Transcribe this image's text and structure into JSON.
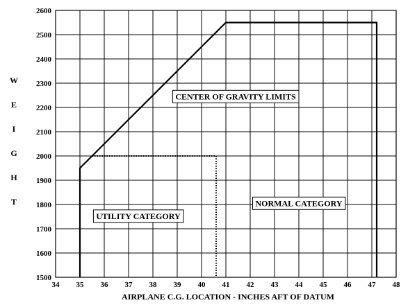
{
  "chart_data": {
    "type": "line",
    "title": "",
    "xlabel": "AIRPLANE C.G. LOCATION - INCHES AFT OF DATUM",
    "ylabel": "WEIGHT",
    "ylabel_letters": [
      "W",
      "E",
      "I",
      "G",
      "H",
      "T"
    ],
    "xlim": [
      34,
      48
    ],
    "ylim": [
      1500,
      2600
    ],
    "x_ticks": [
      34,
      35,
      36,
      37,
      38,
      39,
      40,
      41,
      42,
      43,
      44,
      45,
      46,
      47,
      48
    ],
    "y_ticks": [
      1500,
      1600,
      1700,
      1800,
      1900,
      2000,
      2100,
      2200,
      2300,
      2400,
      2500,
      2600
    ],
    "grid": true,
    "legend": "none",
    "series": [
      {
        "style": "solid",
        "x": [
          35.0,
          35.0,
          41.0,
          47.2,
          47.2
        ],
        "y": [
          1500,
          1950,
          2550,
          2550,
          1500
        ]
      },
      {
        "style": "dotted",
        "x": [
          35.5,
          40.6,
          40.6
        ],
        "y": [
          2000,
          2000,
          1500
        ]
      }
    ],
    "annotations": [
      {
        "text": "CENTER OF GRAVITY LIMITS",
        "x": 41.4,
        "y": 2245
      },
      {
        "text": "NORMAL CATEGORY",
        "x": 44.0,
        "y": 1805
      },
      {
        "text": "UTILITY CATEGORY",
        "x": 37.4,
        "y": 1752
      }
    ]
  }
}
